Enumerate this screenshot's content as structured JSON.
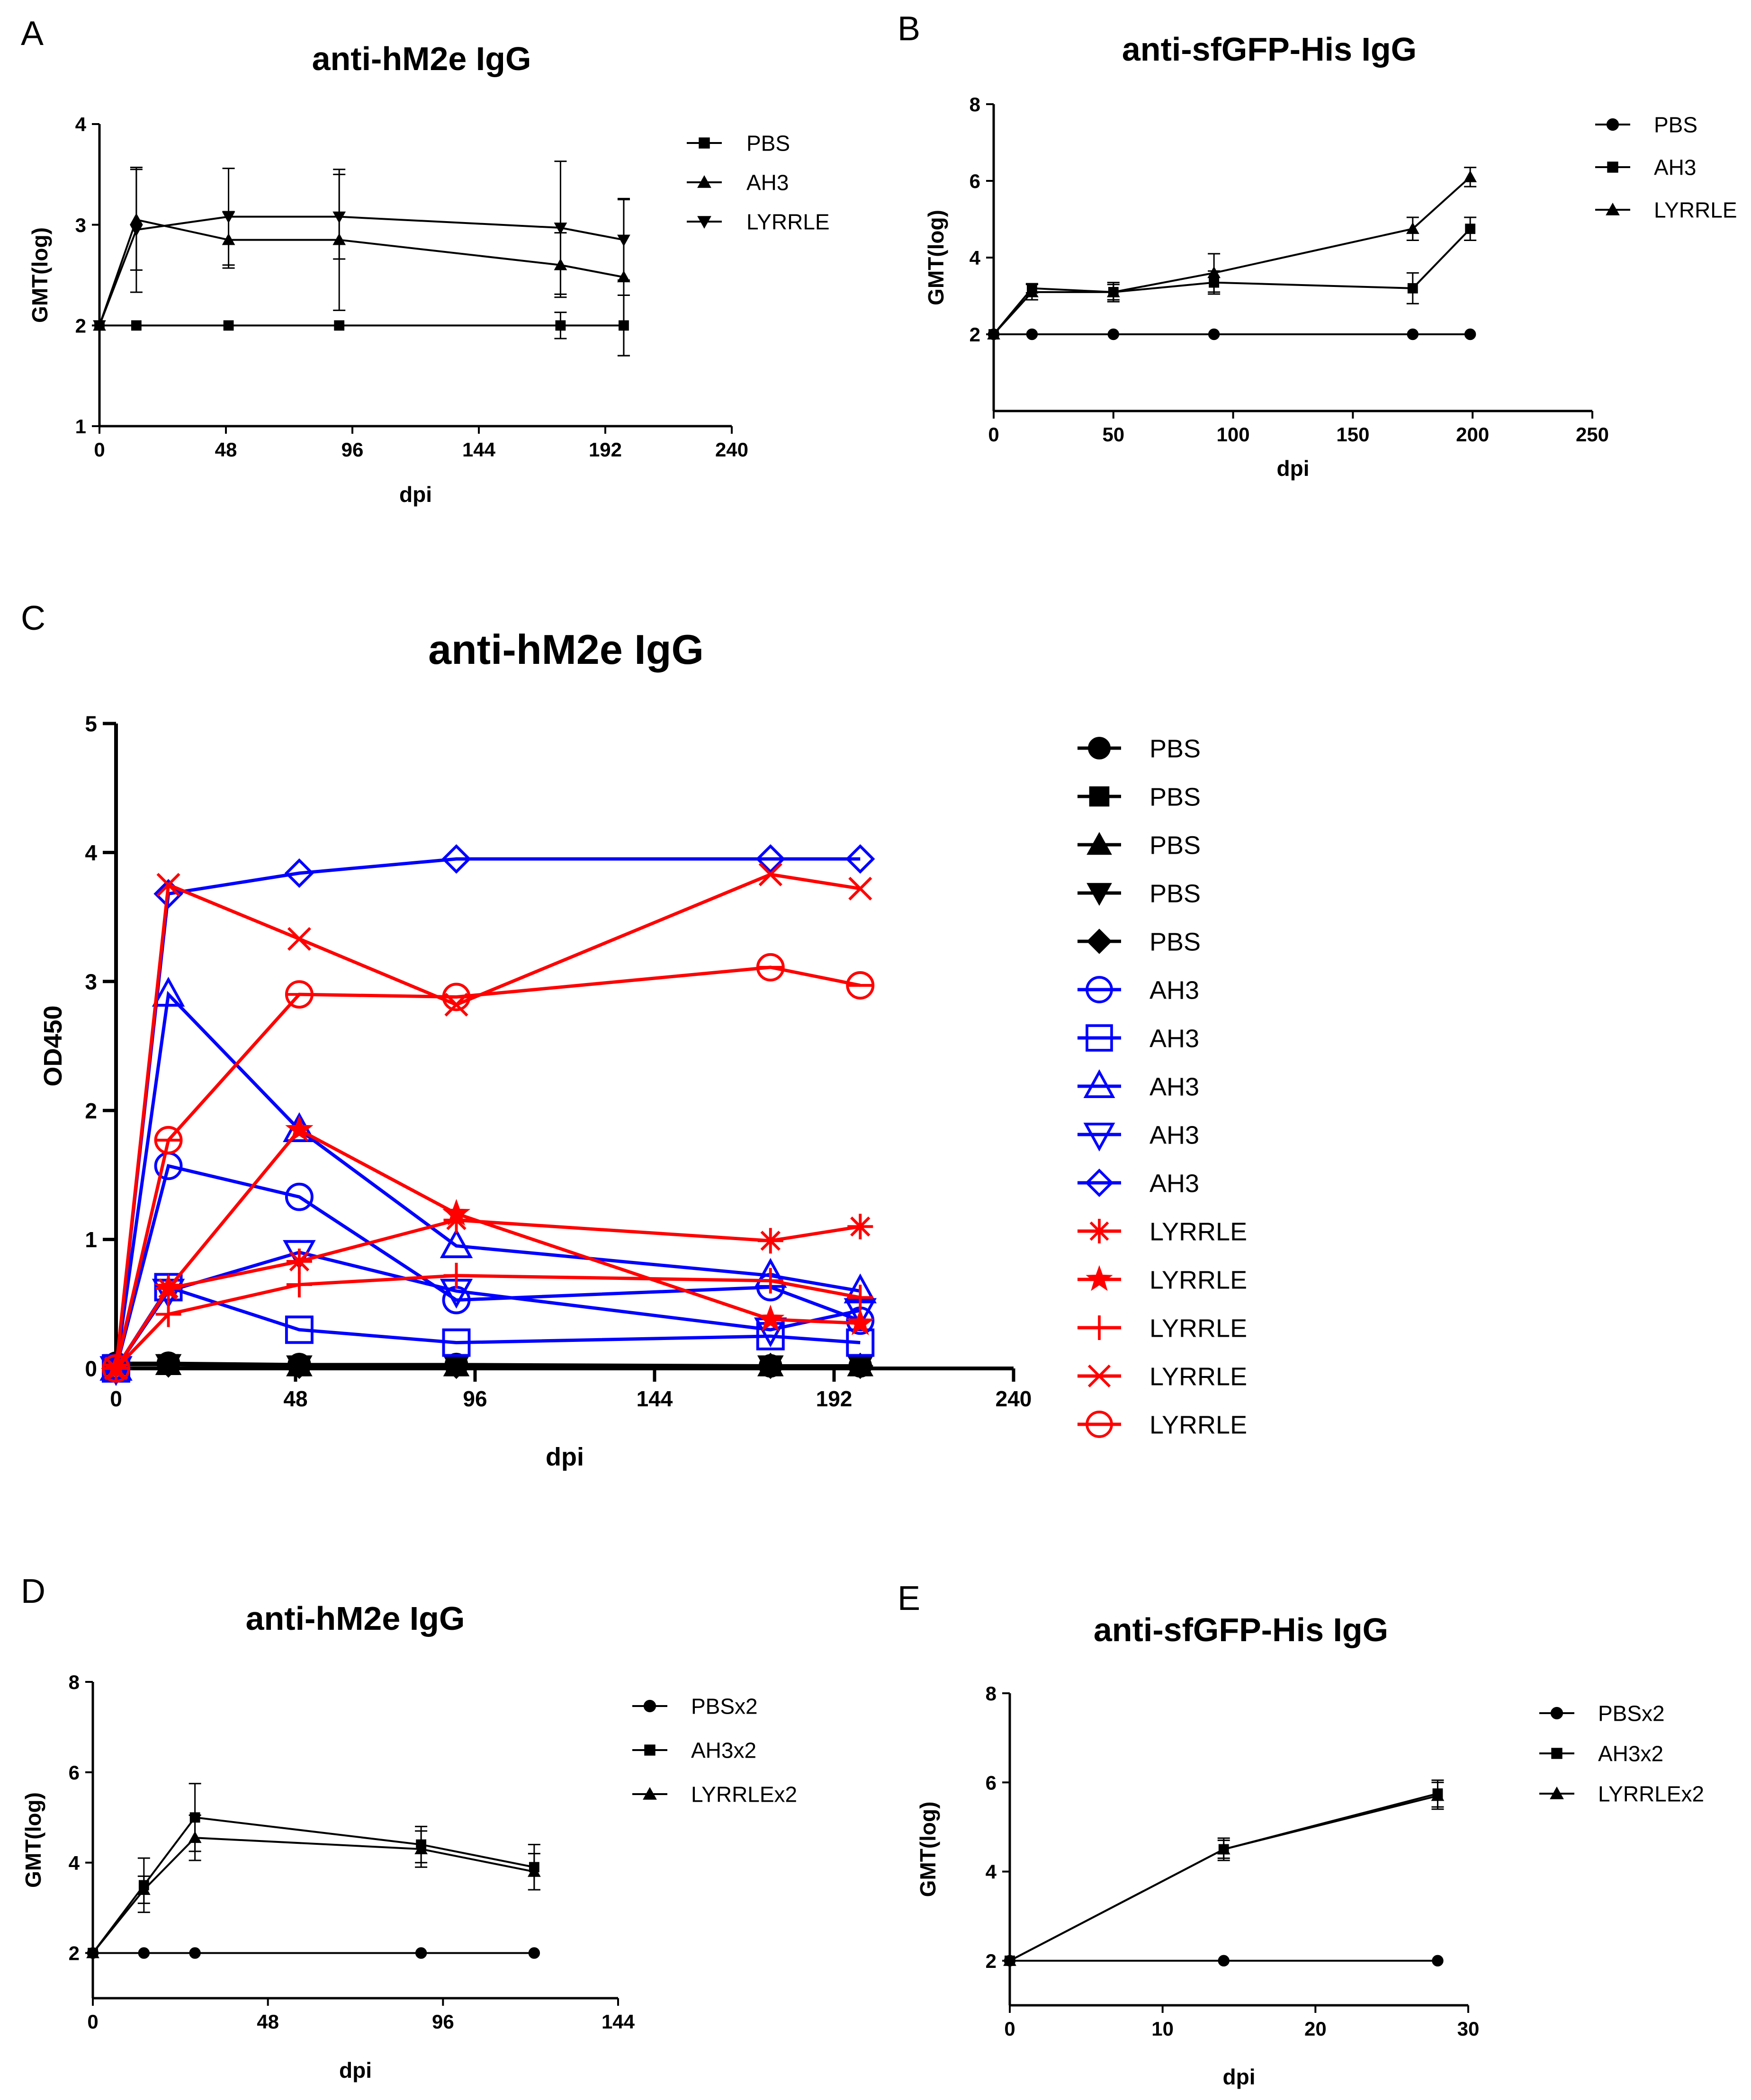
{
  "chart_data": [
    {
      "panel": "A",
      "type": "line",
      "title": "anti-hM2e IgG",
      "xlabel": "dpi",
      "ylabel": "GMT(log)",
      "xlim": [
        0,
        240
      ],
      "ylim": [
        1,
        4
      ],
      "xticks": [
        0,
        48,
        96,
        144,
        192,
        240
      ],
      "yticks": [
        1,
        2,
        3,
        4
      ],
      "series": [
        {
          "name": "PBS",
          "marker": "square",
          "color": "#000000",
          "x": [
            0,
            14,
            49,
            91,
            175,
            199
          ],
          "values": [
            2,
            2,
            2,
            2,
            2,
            2
          ],
          "err": [
            0,
            0,
            0,
            0,
            0.13,
            0.3
          ]
        },
        {
          "name": "AH3",
          "marker": "triangle-up",
          "color": "#000000",
          "x": [
            0,
            14,
            49,
            91,
            175,
            199
          ],
          "values": [
            2,
            3.05,
            2.85,
            2.85,
            2.6,
            2.48
          ],
          "err": [
            0,
            0.5,
            0.28,
            0.7,
            0.32,
            0.78
          ]
        },
        {
          "name": "LYRRLE",
          "marker": "triangle-down",
          "color": "#000000",
          "x": [
            0,
            14,
            49,
            91,
            175,
            199
          ],
          "values": [
            2,
            2.95,
            3.08,
            3.08,
            2.97,
            2.85
          ],
          "err": [
            0,
            0.62,
            0.48,
            0.42,
            0.66,
            0.4
          ]
        }
      ]
    },
    {
      "panel": "B",
      "type": "line",
      "title": "anti-sfGFP-His IgG",
      "xlabel": "dpi",
      "ylabel": "GMT(log)",
      "xlim": [
        0,
        250
      ],
      "ylim": [
        0,
        8
      ],
      "xticks": [
        0,
        50,
        100,
        150,
        200,
        250
      ],
      "yticks": [
        2,
        4,
        6,
        8
      ],
      "series": [
        {
          "name": "PBS",
          "marker": "circle",
          "color": "#000000",
          "x": [
            0,
            16,
            50,
            92,
            175,
            199
          ],
          "values": [
            2,
            2,
            2,
            2,
            2,
            2
          ],
          "err": [
            0,
            0,
            0,
            0,
            0,
            0
          ]
        },
        {
          "name": "AH3",
          "marker": "square",
          "color": "#000000",
          "x": [
            0,
            16,
            50,
            92,
            175,
            199
          ],
          "values": [
            2,
            3.2,
            3.1,
            3.35,
            3.2,
            4.75
          ],
          "err": [
            0,
            0.12,
            0.25,
            0.3,
            0.4,
            0.3
          ]
        },
        {
          "name": "LYRRLE",
          "marker": "triangle-up",
          "color": "#000000",
          "x": [
            0,
            16,
            50,
            92,
            175,
            199
          ],
          "values": [
            2,
            3.1,
            3.1,
            3.6,
            4.75,
            6.1
          ],
          "err": [
            0,
            0.2,
            0.2,
            0.5,
            0.3,
            0.25
          ]
        }
      ]
    },
    {
      "panel": "C",
      "type": "line",
      "title": "anti-hM2e IgG",
      "xlabel": "dpi",
      "ylabel": "OD450",
      "xlim": [
        0,
        240
      ],
      "ylim": [
        0,
        5
      ],
      "xticks": [
        0,
        48,
        96,
        144,
        192,
        240
      ],
      "yticks": [
        0,
        1,
        2,
        3,
        4,
        5
      ],
      "series": [
        {
          "name": "PBS",
          "marker": "circle",
          "color": "#000000",
          "x": [
            0,
            14,
            49,
            91,
            175,
            199
          ],
          "values": [
            0.04,
            0.04,
            0.03,
            0.03,
            0.02,
            0.02
          ]
        },
        {
          "name": "PBS",
          "marker": "square",
          "color": "#000000",
          "x": [
            0,
            14,
            49,
            91,
            175,
            199
          ],
          "values": [
            0.03,
            0.03,
            0.02,
            0.02,
            0.02,
            0.02
          ]
        },
        {
          "name": "PBS",
          "marker": "triangle-up",
          "color": "#000000",
          "x": [
            0,
            14,
            49,
            91,
            175,
            199
          ],
          "values": [
            0.03,
            0.03,
            0.02,
            0.02,
            0.02,
            0.02
          ]
        },
        {
          "name": "PBS",
          "marker": "triangle-down",
          "color": "#000000",
          "x": [
            0,
            14,
            49,
            91,
            175,
            199
          ],
          "values": [
            0.03,
            0.03,
            0.02,
            0.02,
            0.02,
            0.02
          ]
        },
        {
          "name": "PBS",
          "marker": "diamond",
          "color": "#000000",
          "x": [
            0,
            14,
            49,
            91,
            175,
            199
          ],
          "values": [
            0.03,
            0.03,
            0.02,
            0.02,
            0.02,
            0.02
          ]
        },
        {
          "name": "AH3",
          "marker": "circle-open",
          "color": "#0000ff",
          "x": [
            0,
            14,
            49,
            91,
            175,
            199
          ],
          "values": [
            0,
            1.57,
            1.33,
            0.53,
            0.63,
            0.37
          ]
        },
        {
          "name": "AH3",
          "marker": "square-open",
          "color": "#0000ff",
          "x": [
            0,
            14,
            49,
            91,
            175,
            199
          ],
          "values": [
            0,
            0.63,
            0.3,
            0.2,
            0.25,
            0.2
          ]
        },
        {
          "name": "AH3",
          "marker": "triangle-up-open",
          "color": "#0000ff",
          "x": [
            0,
            14,
            49,
            91,
            175,
            199
          ],
          "values": [
            0,
            2.9,
            1.85,
            0.95,
            0.72,
            0.6
          ]
        },
        {
          "name": "AH3",
          "marker": "triangle-down-open",
          "color": "#0000ff",
          "x": [
            0,
            14,
            49,
            91,
            175,
            199
          ],
          "values": [
            0,
            0.6,
            0.9,
            0.6,
            0.3,
            0.45
          ]
        },
        {
          "name": "AH3",
          "marker": "diamond-open",
          "color": "#0000ff",
          "x": [
            0,
            14,
            49,
            91,
            175,
            199
          ],
          "values": [
            0,
            3.68,
            3.84,
            3.95,
            3.95,
            3.95
          ]
        },
        {
          "name": "LYRRLE",
          "marker": "asterisk",
          "color": "#ff0000",
          "x": [
            0,
            14,
            49,
            91,
            175,
            199
          ],
          "values": [
            0,
            0.62,
            0.83,
            1.15,
            0.99,
            1.1
          ]
        },
        {
          "name": "LYRRLE",
          "marker": "star",
          "color": "#ff0000",
          "x": [
            0,
            14,
            49,
            91,
            175,
            199
          ],
          "values": [
            0,
            0.62,
            1.85,
            1.2,
            0.38,
            0.35
          ]
        },
        {
          "name": "LYRRLE",
          "marker": "plus",
          "color": "#ff0000",
          "x": [
            0,
            14,
            49,
            91,
            175,
            199
          ],
          "values": [
            0,
            0.42,
            0.65,
            0.72,
            0.68,
            0.55
          ]
        },
        {
          "name": "LYRRLE",
          "marker": "x",
          "color": "#ff0000",
          "x": [
            0,
            14,
            49,
            91,
            175,
            199
          ],
          "values": [
            0,
            3.75,
            3.33,
            2.82,
            3.83,
            3.72
          ]
        },
        {
          "name": "LYRRLE",
          "marker": "circle-minus",
          "color": "#ff0000",
          "x": [
            0,
            14,
            49,
            91,
            175,
            199
          ],
          "values": [
            0,
            1.77,
            2.9,
            2.88,
            3.11,
            2.97
          ]
        }
      ]
    },
    {
      "panel": "D",
      "type": "line",
      "title": "anti-hM2e IgG",
      "xlabel": "dpi",
      "ylabel": "GMT(log)",
      "xlim": [
        0,
        144
      ],
      "ylim": [
        1,
        8
      ],
      "xticks": [
        0,
        48,
        96,
        144
      ],
      "yticks": [
        2,
        4,
        6,
        8
      ],
      "series": [
        {
          "name": "PBSx2",
          "marker": "circle",
          "color": "#000000",
          "x": [
            0,
            14,
            28,
            90,
            121
          ],
          "values": [
            2,
            2,
            2,
            2,
            2
          ],
          "err": [
            0,
            0,
            0,
            0,
            0
          ]
        },
        {
          "name": "AH3x2",
          "marker": "square",
          "color": "#000000",
          "x": [
            0,
            14,
            28,
            90,
            121
          ],
          "values": [
            2,
            3.5,
            5.0,
            4.4,
            3.9
          ],
          "err": [
            0,
            0.6,
            0.75,
            0.4,
            0.5
          ]
        },
        {
          "name": "LYRRLEx2",
          "marker": "triangle-up",
          "color": "#000000",
          "x": [
            0,
            14,
            28,
            90,
            121
          ],
          "values": [
            2,
            3.4,
            4.55,
            4.3,
            3.8
          ],
          "err": [
            0,
            0.3,
            0.5,
            0.4,
            0.4
          ]
        }
      ]
    },
    {
      "panel": "E",
      "type": "line",
      "title": "anti-sfGFP-His IgG",
      "xlabel": "dpi",
      "ylabel": "GMT(log)",
      "xlim": [
        0,
        30
      ],
      "ylim": [
        1,
        8
      ],
      "xticks": [
        0,
        10,
        20,
        30
      ],
      "yticks": [
        2,
        4,
        6,
        8
      ],
      "series": [
        {
          "name": "PBSx2",
          "marker": "circle",
          "color": "#000000",
          "x": [
            0,
            14,
            28
          ],
          "values": [
            2,
            2,
            2
          ],
          "err": [
            0,
            0,
            0
          ]
        },
        {
          "name": "AH3x2",
          "marker": "square",
          "color": "#000000",
          "x": [
            0,
            14,
            28
          ],
          "values": [
            2,
            4.5,
            5.75
          ],
          "err": [
            0,
            0.25,
            0.3
          ]
        },
        {
          "name": "LYRRLEx2",
          "marker": "triangle-up",
          "color": "#000000",
          "x": [
            0,
            14,
            28
          ],
          "values": [
            2,
            4.5,
            5.7
          ],
          "err": [
            0,
            0.2,
            0.3
          ]
        }
      ]
    }
  ]
}
